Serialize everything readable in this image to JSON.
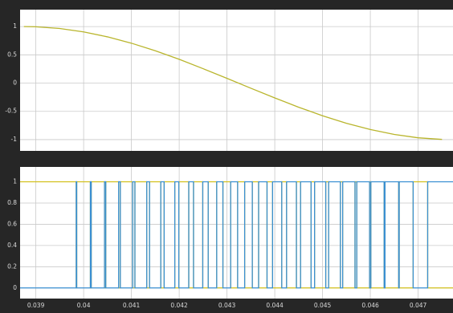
{
  "chart_data": [
    {
      "type": "line",
      "x": [
        0.03875,
        0.039,
        0.0395,
        0.04,
        0.0405,
        0.041,
        0.0415,
        0.042,
        0.0425,
        0.043,
        0.0435,
        0.044,
        0.0445,
        0.045,
        0.0455,
        0.046,
        0.0465,
        0.047,
        0.0475
      ],
      "series": [
        {
          "color": "#b9b52c",
          "values": [
            1,
            0.996,
            0.966,
            0.906,
            0.818,
            0.706,
            0.572,
            0.421,
            0.255,
            0.084,
            -0.091,
            -0.262,
            -0.427,
            -0.578,
            -0.711,
            -0.822,
            -0.909,
            -0.968,
            -0.997
          ]
        }
      ],
      "xlim": [
        0.03867,
        0.04773
      ],
      "xticks": [
        0.039,
        0.04,
        0.041,
        0.042,
        0.043,
        0.044,
        0.045,
        0.046,
        0.047
      ],
      "ylim": [
        -1.2,
        1.3
      ],
      "yticks": [
        -1,
        -0.5,
        0,
        0.5,
        1
      ],
      "grid": true
    },
    {
      "type": "step",
      "x": [
        0.03867,
        0.039845,
        0.039855,
        0.040141,
        0.040159,
        0.040437,
        0.040463,
        0.040732,
        0.040768,
        0.041027,
        0.041073,
        0.041321,
        0.041379,
        0.041615,
        0.041685,
        0.041908,
        0.041992,
        0.0422,
        0.0423,
        0.042493,
        0.042607,
        0.042785,
        0.042915,
        0.043077,
        0.043223,
        0.04337,
        0.04353,
        0.043662,
        0.043838,
        0.043954,
        0.044146,
        0.044247,
        0.044453,
        0.04454,
        0.04476,
        0.044833,
        0.045067,
        0.045127,
        0.045373,
        0.045421,
        0.045679,
        0.045716,
        0.045984,
        0.046011,
        0.046289,
        0.046307,
        0.046593,
        0.046604,
        0.046896,
        0.0472
      ],
      "series": [
        {
          "color": "#d2c01c",
          "values": [
            1,
            0,
            1,
            0,
            1,
            0,
            1,
            0,
            1,
            0,
            1,
            0,
            1,
            0,
            1,
            0,
            1,
            0,
            1,
            0,
            1,
            0,
            1,
            0,
            1,
            0,
            1,
            0,
            1,
            0,
            1,
            0,
            1,
            0,
            1,
            0,
            1,
            0,
            1,
            0,
            1,
            0,
            1,
            0,
            1,
            0,
            1,
            0,
            1,
            0
          ]
        },
        {
          "color": "#3a8fd2",
          "values": [
            0,
            1,
            0,
            1,
            0,
            1,
            0,
            1,
            0,
            1,
            0,
            1,
            0,
            1,
            0,
            1,
            0,
            1,
            0,
            1,
            0,
            1,
            0,
            1,
            0,
            1,
            0,
            1,
            0,
            1,
            0,
            1,
            0,
            1,
            0,
            1,
            0,
            1,
            0,
            1,
            0,
            1,
            0,
            1,
            0,
            1,
            0,
            1,
            0,
            1
          ]
        }
      ],
      "xlim": [
        0.03867,
        0.04773
      ],
      "xticks": [
        0.039,
        0.04,
        0.041,
        0.042,
        0.043,
        0.044,
        0.045,
        0.046,
        0.047
      ],
      "ylim": [
        -0.1,
        1.14
      ],
      "yticks": [
        0,
        0.2,
        0.4,
        0.6,
        0.8,
        1
      ],
      "grid": true
    }
  ]
}
